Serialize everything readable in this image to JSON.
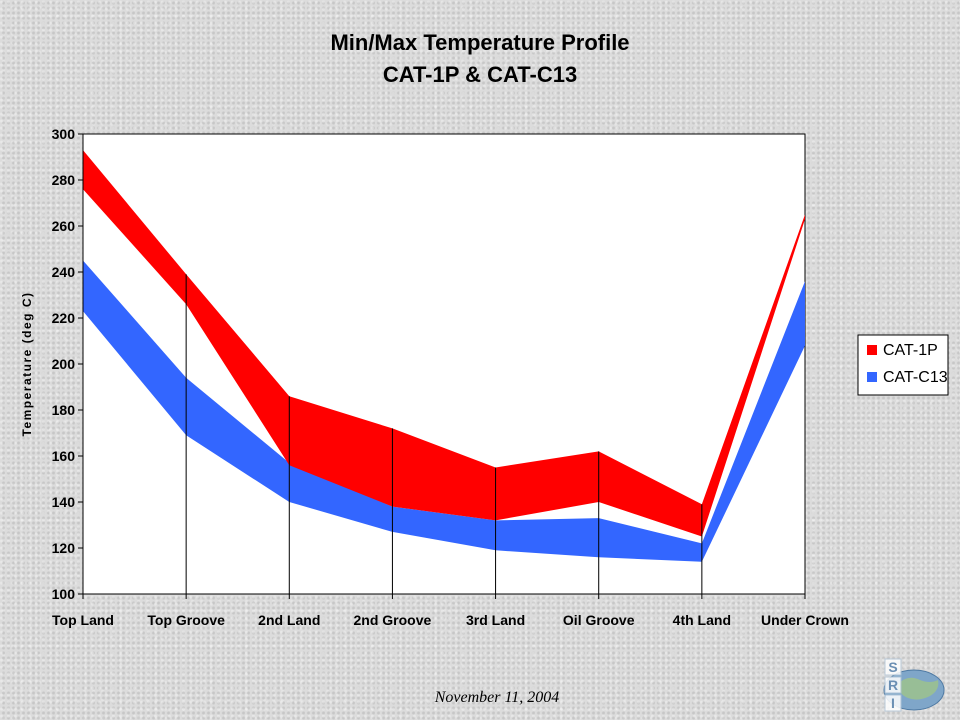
{
  "slide": {
    "footer_date": "November 11, 2004",
    "logo_letters": [
      "S",
      "R",
      "I"
    ]
  },
  "chart_data": {
    "type": "area",
    "title": "Min/Max Temperature Profile",
    "subtitle": "CAT-1P & CAT-C13",
    "xlabel": "",
    "ylabel": "Temperature (deg C)",
    "categories": [
      "Top Land",
      "Top Groove",
      "2nd Land",
      "2nd Groove",
      "3rd Land",
      "Oil Groove",
      "4th Land",
      "Under Crown"
    ],
    "ylim": [
      100,
      300
    ],
    "yticks": [
      100,
      120,
      140,
      160,
      180,
      200,
      220,
      240,
      260,
      280,
      300
    ],
    "grid": false,
    "legend_position": "right",
    "series": [
      {
        "name": "CAT-1P",
        "color": "#ff0000",
        "min": [
          276,
          226,
          156,
          138,
          132,
          140,
          125,
          263
        ],
        "max": [
          293,
          239,
          186,
          172,
          155,
          162,
          139,
          265
        ]
      },
      {
        "name": "CAT-C13",
        "color": "#3366ff",
        "min": [
          223,
          169,
          140,
          127,
          119,
          116,
          114,
          208
        ],
        "max": [
          245,
          194,
          157,
          138,
          132,
          133,
          122,
          236
        ]
      }
    ]
  }
}
